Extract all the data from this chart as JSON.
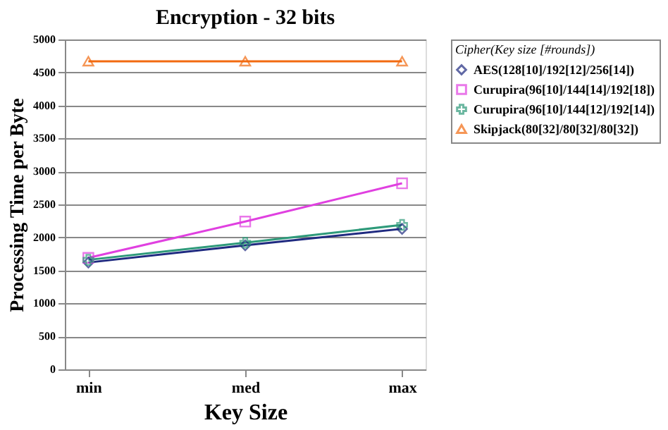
{
  "chart_data": {
    "type": "line",
    "title": "Encryption - 32 bits",
    "xlabel": "Key Size",
    "ylabel": "Processing Time per Byte",
    "legend_title": "Cipher(Key size [#rounds])",
    "categories": [
      "min",
      "med",
      "max"
    ],
    "series": [
      {
        "name": "AES(128[10]/192[12]/256[14])",
        "color": "#1f2a80",
        "marker": "diamond",
        "values": [
          1620,
          1880,
          2130
        ]
      },
      {
        "name": "Curupira(96[10]/144[14]/192[18])",
        "color": "#e040e0",
        "marker": "square",
        "values": [
          1690,
          2240,
          2820
        ]
      },
      {
        "name": "Curupira(96[10]/144[12]/192[14])",
        "color": "#2e9a7a",
        "marker": "cross",
        "values": [
          1660,
          1920,
          2190
        ]
      },
      {
        "name": "Skipjack(80[32]/80[32]/80[32])",
        "color": "#f26a10",
        "marker": "triangle",
        "values": [
          4670,
          4670,
          4670
        ]
      }
    ],
    "ylim": [
      0,
      5000
    ],
    "yticks": [
      0,
      500,
      1000,
      1500,
      2000,
      2500,
      3000,
      3500,
      4000,
      4500,
      5000
    ],
    "grid": "y",
    "legend": "right"
  }
}
